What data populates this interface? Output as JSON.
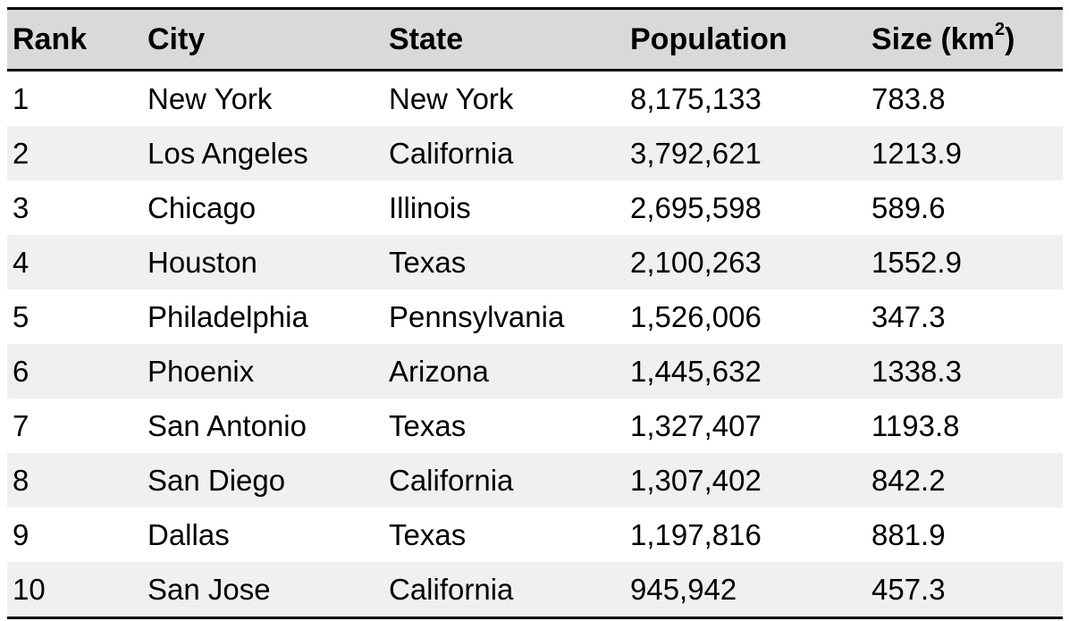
{
  "chart_data": {
    "type": "table",
    "columns": [
      "Rank",
      "City",
      "State",
      "Population",
      "Size (km",
      "2",
      ")"
    ],
    "header": {
      "rank": "Rank",
      "city": "City",
      "state": "State",
      "population": "Population",
      "size_prefix": "Size (km",
      "size_sup": "2",
      "size_suffix": ")"
    },
    "rows": [
      {
        "rank": "1",
        "city": "New York",
        "state": "New York",
        "population": "8,175,133",
        "size": "783.8"
      },
      {
        "rank": "2",
        "city": "Los Angeles",
        "state": "California",
        "population": "3,792,621",
        "size": "1213.9"
      },
      {
        "rank": "3",
        "city": "Chicago",
        "state": "Illinois",
        "population": "2,695,598",
        "size": "589.6"
      },
      {
        "rank": "4",
        "city": "Houston",
        "state": "Texas",
        "population": "2,100,263",
        "size": "1552.9"
      },
      {
        "rank": "5",
        "city": "Philadelphia",
        "state": "Pennsylvania",
        "population": "1,526,006",
        "size": "347.3"
      },
      {
        "rank": "6",
        "city": "Phoenix",
        "state": "Arizona",
        "population": "1,445,632",
        "size": "1338.3"
      },
      {
        "rank": "7",
        "city": "San Antonio",
        "state": "Texas",
        "population": "1,327,407",
        "size": "1193.8"
      },
      {
        "rank": "8",
        "city": "San Diego",
        "state": "California",
        "population": "1,307,402",
        "size": "842.2"
      },
      {
        "rank": "9",
        "city": "Dallas",
        "state": "Texas",
        "population": "1,197,816",
        "size": "881.9"
      },
      {
        "rank": "10",
        "city": "San Jose",
        "state": "California",
        "population": "945,942",
        "size": "457.3"
      }
    ],
    "colors": {
      "header_bg": "#d9d9d9",
      "row_alt_bg": "#f0f0f0",
      "row_bg": "#ffffff",
      "rule": "#000000"
    }
  }
}
